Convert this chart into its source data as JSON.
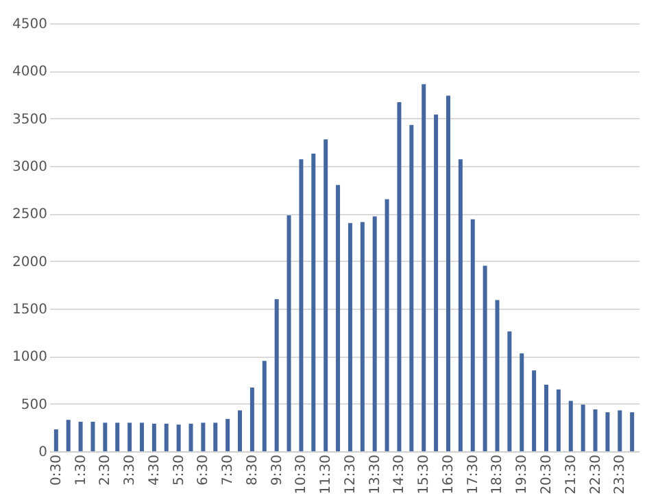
{
  "chart_data": {
    "type": "bar",
    "categories": [
      "0:30",
      null,
      "1:30",
      null,
      "2:30",
      null,
      "3:30",
      null,
      "4:30",
      null,
      "5:30",
      null,
      "6:30",
      null,
      "7:30",
      null,
      "8:30",
      null,
      "9:30",
      null,
      "10:30",
      null,
      "11:30",
      null,
      "12:30",
      null,
      "13:30",
      null,
      "14:30",
      null,
      "15:30",
      null,
      "16:30",
      null,
      "17:30",
      null,
      "18:30",
      null,
      "19:30",
      null,
      "20:30",
      null,
      "21:30",
      null,
      "22:30",
      null,
      "23:30",
      null
    ],
    "values": [
      230,
      330,
      310,
      310,
      300,
      300,
      300,
      300,
      290,
      290,
      280,
      290,
      300,
      300,
      340,
      430,
      670,
      950,
      1600,
      2480,
      3070,
      3130,
      3280,
      2800,
      2400,
      2410,
      2470,
      2650,
      3670,
      3430,
      3860,
      3540,
      3740,
      3070,
      2440,
      1950,
      1590,
      1260,
      1030,
      850,
      700,
      650,
      530,
      490,
      440,
      410,
      430,
      410
    ],
    "color": "#44679f",
    "ylim": [
      0,
      4500
    ],
    "yticks": [
      0,
      500,
      1000,
      1500,
      2000,
      2500,
      3000,
      3500,
      4000,
      4500
    ],
    "grid": "y"
  }
}
